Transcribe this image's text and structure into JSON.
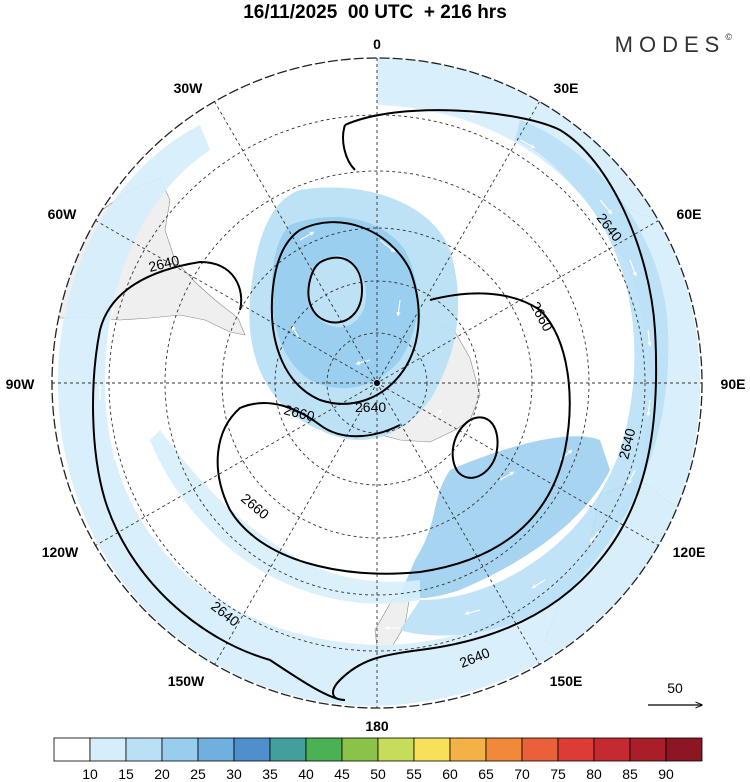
{
  "header": {
    "title": "16/11/2025  00 UTC  + 216 hrs",
    "brand": "MODES",
    "brand_mark": "©"
  },
  "map": {
    "projection": "south polar stereographic",
    "longitude_labels": {
      "top": "0",
      "upper_right": "30E",
      "right_upper": "60E",
      "right": "90E",
      "right_lower": "120E",
      "lower_right": "150E",
      "bottom": "180",
      "lower_left": "150W",
      "left_lower": "120W",
      "left": "90W",
      "left_upper": "60W",
      "upper_left": "30W"
    },
    "contour_labels": {
      "outer_left": "2640",
      "outer_right": "2640",
      "outer_right_lower": "2640",
      "outer_bottom_left": "2640",
      "outer_bottom_right": "2640",
      "inner_left": "2660",
      "inner_bottom": "2660",
      "inner_right": "2660",
      "center": "2640"
    },
    "wind_reference": {
      "value": "50"
    },
    "colors": {
      "shade_10": "#d6eefb",
      "shade_15": "#b9e0f6",
      "shade_20": "#98cdee",
      "land": "#efefef"
    }
  },
  "colorbar": {
    "ticks": [
      "10",
      "15",
      "20",
      "25",
      "30",
      "35",
      "40",
      "45",
      "50",
      "55",
      "60",
      "65",
      "70",
      "75",
      "80",
      "85",
      "90"
    ],
    "colors": [
      "#ffffff",
      "#d6eefb",
      "#b9e0f6",
      "#98cdee",
      "#6fb0df",
      "#4f8fcb",
      "#429f9b",
      "#4bb155",
      "#8bc34a",
      "#c6dc5a",
      "#f7e15b",
      "#f4b246",
      "#f08a3a",
      "#e9603a",
      "#dd3b35",
      "#c62a31",
      "#a91e29",
      "#8c1723"
    ]
  }
}
